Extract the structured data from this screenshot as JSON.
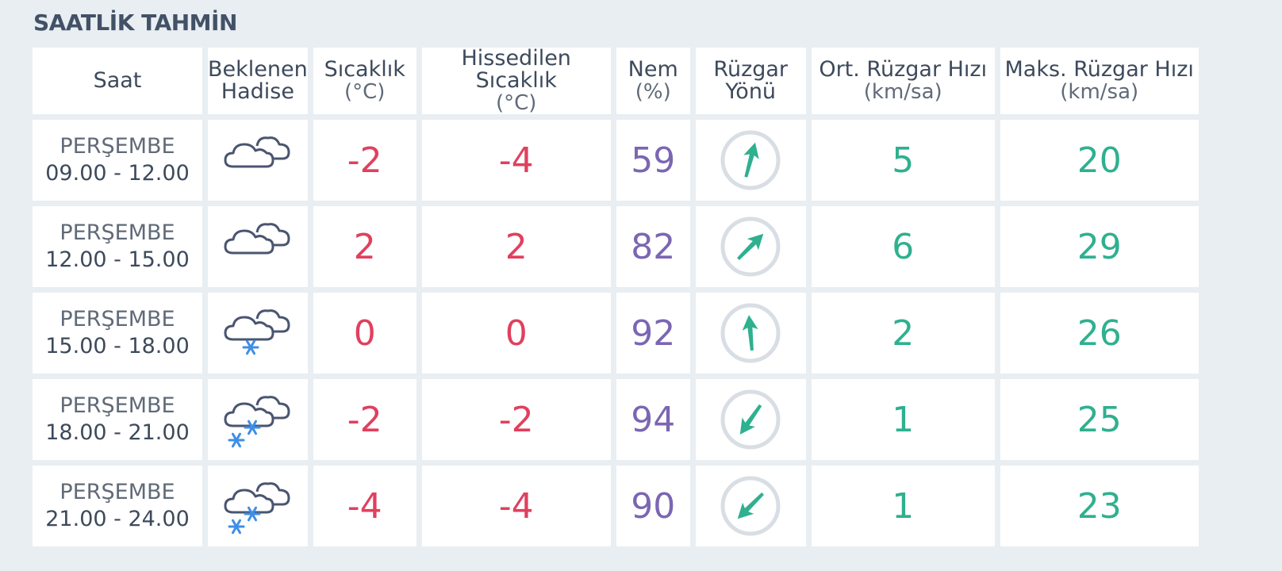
{
  "title": "SAATLİK TAHMİN",
  "headers": {
    "time": "Saat",
    "event_l1": "Beklenen",
    "event_l2": "Hadise",
    "temp_l1": "Sıcaklık",
    "temp_l2": "(°C)",
    "feels_l1": "Hissedilen Sıcaklık",
    "feels_l2": "(°C)",
    "hum_l1": "Nem",
    "hum_l2": "(%)",
    "dir_l1": "Rüzgar",
    "dir_l2": "Yönü",
    "avg_l1": "Ort. Rüzgar Hızı",
    "avg_l2": "(km/sa)",
    "max_l1": "Maks. Rüzgar Hızı",
    "max_l2": "(km/sa)"
  },
  "colors": {
    "temperature": "#e0405e",
    "humidity": "#7b66b3",
    "wind": "#2fb08f",
    "snow": "#3f8ee6",
    "cloud_stroke": "#4a5570"
  },
  "rows": [
    {
      "day": "PERŞEMBE",
      "range": "09.00 - 12.00",
      "icon": "cloudy-icon",
      "temp": "-2",
      "feels": "-4",
      "humidity": "59",
      "wind_direction_icon": "arrow-north-northeast-icon",
      "wind_direction_deg": 15,
      "avg_wind": "5",
      "max_wind": "20"
    },
    {
      "day": "PERŞEMBE",
      "range": "12.00 - 15.00",
      "icon": "cloudy-icon",
      "temp": "2",
      "feels": "2",
      "humidity": "82",
      "wind_direction_icon": "arrow-northeast-icon",
      "wind_direction_deg": 45,
      "avg_wind": "6",
      "max_wind": "29"
    },
    {
      "day": "PERŞEMBE",
      "range": "15.00 - 18.00",
      "icon": "cloud-light-snow-icon",
      "temp": "0",
      "feels": "0",
      "humidity": "92",
      "wind_direction_icon": "arrow-north-icon",
      "wind_direction_deg": -5,
      "avg_wind": "2",
      "max_wind": "26"
    },
    {
      "day": "PERŞEMBE",
      "range": "18.00 - 21.00",
      "icon": "cloud-snow-icon",
      "temp": "-2",
      "feels": "-2",
      "humidity": "94",
      "wind_direction_icon": "arrow-southwest-icon",
      "wind_direction_deg": 215,
      "avg_wind": "1",
      "max_wind": "25"
    },
    {
      "day": "PERŞEMBE",
      "range": "21.00 - 24.00",
      "icon": "cloud-snow-icon",
      "temp": "-4",
      "feels": "-4",
      "humidity": "90",
      "wind_direction_icon": "arrow-southwest-icon",
      "wind_direction_deg": 225,
      "avg_wind": "1",
      "max_wind": "23"
    }
  ]
}
